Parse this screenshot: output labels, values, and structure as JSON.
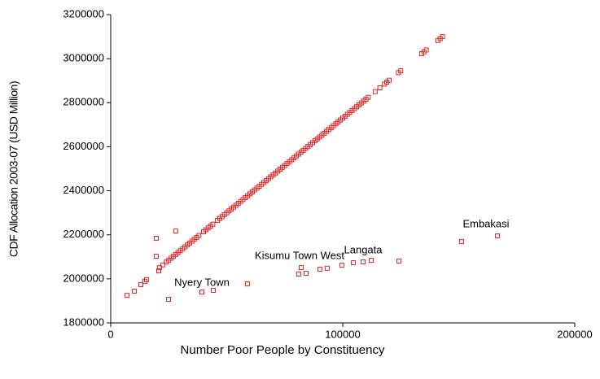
{
  "chart_data": {
    "type": "scatter",
    "x_label": "Number Poor People by Constituency",
    "y_label": "CDF Allocation 2003-07 (USD Million)",
    "color": "#e02020",
    "xlim": [
      0,
      200000
    ],
    "ylim": [
      1800000,
      3200000
    ],
    "xticks": [
      0,
      100000,
      200000
    ],
    "yticks": [
      1800000,
      2000000,
      2200000,
      2400000,
      2600000,
      2800000,
      3000000,
      3200000
    ],
    "annotations": [
      "Nyery Town",
      "Kisumu Town West",
      "Langata",
      "Embakasi"
    ],
    "x": [
      21000,
      22500,
      24000,
      25000,
      26000,
      27000,
      28000,
      29000,
      30000,
      31000,
      32000,
      33000,
      34000,
      35000,
      36000,
      37000,
      38000,
      40000,
      41000,
      42000,
      43000,
      44000,
      46000,
      47000,
      48000,
      49000,
      50000,
      51000,
      52000,
      53000,
      54000,
      55000,
      56000,
      57000,
      58000,
      59000,
      60000,
      61000,
      62000,
      63000,
      64000,
      65000,
      66000,
      67000,
      68000,
      69000,
      70000,
      71000,
      72000,
      73000,
      74000,
      75000,
      76000,
      77000,
      78000,
      79000,
      80000,
      81000,
      82000,
      83000,
      84000,
      85000,
      86000,
      87000,
      88000,
      89000,
      90000,
      91000,
      92000,
      93000,
      94000,
      95000,
      96000,
      97000,
      98000,
      99000,
      100000,
      101000,
      102000,
      103000,
      104000,
      105000,
      106000,
      107000,
      108000,
      109000,
      110000,
      111000,
      114000,
      116000,
      118000,
      119000,
      120000,
      124000,
      125000,
      134000,
      135000,
      136000,
      141000,
      142000,
      143000,
      7000,
      10200,
      13000,
      14700,
      15400,
      19600,
      19600,
      20700,
      24900,
      28000,
      39300,
      44200,
      58900,
      81000,
      82100,
      84200,
      90200,
      93300,
      99600,
      104600,
      108800,
      112300,
      124200,
      151200,
      166700
    ],
    "values": [
      2050600,
      2063500,
      2076400,
      2085000,
      2093600,
      2102200,
      2110800,
      2119400,
      2128000,
      2136600,
      2145200,
      2153800,
      2162400,
      2171000,
      2179600,
      2188200,
      2196800,
      2214000,
      2222600,
      2231200,
      2239800,
      2248400,
      2265600,
      2274200,
      2282800,
      2291400,
      2300000,
      2308600,
      2317200,
      2325800,
      2334400,
      2343000,
      2351600,
      2360200,
      2368800,
      2377400,
      2386000,
      2394600,
      2403200,
      2411800,
      2420400,
      2429000,
      2437600,
      2446200,
      2454800,
      2463400,
      2472000,
      2480600,
      2489200,
      2497800,
      2506400,
      2515000,
      2523600,
      2532200,
      2540800,
      2549400,
      2558000,
      2566600,
      2575200,
      2583800,
      2592400,
      2601000,
      2609600,
      2618200,
      2626800,
      2635400,
      2644000,
      2652600,
      2661200,
      2669800,
      2678400,
      2687000,
      2695600,
      2704200,
      2712800,
      2721400,
      2730000,
      2738600,
      2747200,
      2755800,
      2764400,
      2773000,
      2781600,
      2790200,
      2798800,
      2807400,
      2816000,
      2824600,
      2850400,
      2867600,
      2884800,
      2893400,
      2902000,
      2936400,
      2945000,
      3022400,
      3031000,
      3039600,
      3082600,
      3091200,
      3099800,
      1925000,
      1944000,
      1973600,
      1988000,
      1996000,
      2184000,
      2103000,
      2036000,
      1907000,
      2217000,
      1940000,
      1948000,
      1977000,
      2022000,
      2051000,
      2025000,
      2044000,
      2048000,
      2062000,
      2073000,
      2077000,
      2084000,
      2081000,
      2169000,
      2195000
    ]
  }
}
